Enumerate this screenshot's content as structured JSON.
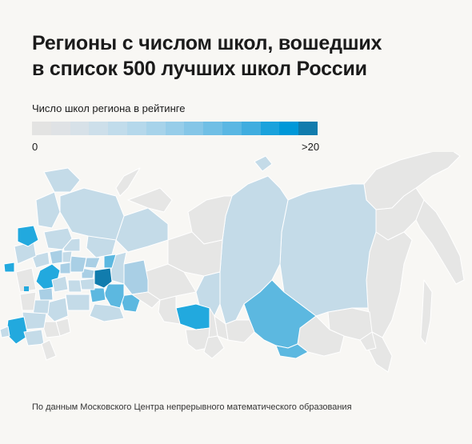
{
  "title": {
    "line1": "Регионы с числом школ, вошедших",
    "line2": "в список 500 лучших школ России"
  },
  "legend": {
    "title": "Число школ региона в рейтинге",
    "min_label": "0",
    "max_label": ">20",
    "scale_colors": [
      "#e3e3e2",
      "#dfe2e5",
      "#d7e1e8",
      "#cddfea",
      "#c1dceb",
      "#b5d8eb",
      "#a7d3ea",
      "#97cde9",
      "#85c6e7",
      "#70bfe5",
      "#5ab7e3",
      "#40addf",
      "#1aa2dc",
      "#0098d8",
      "#117cad"
    ]
  },
  "map": {
    "value_colors": {
      "zero": "#e6e6e5",
      "low": "#c4dbe8",
      "mid_low": "#a9cfe5",
      "mid": "#5cb8e0",
      "high": "#22a9de",
      "max": "#117cad"
    }
  },
  "source": "По данным Московского Центра непрерывного математического образования"
}
